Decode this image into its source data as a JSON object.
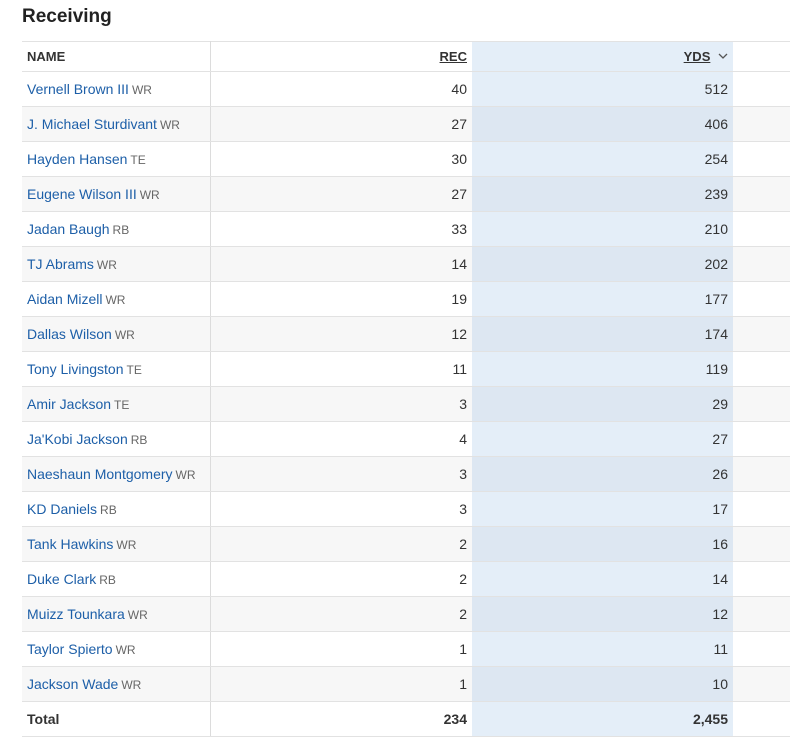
{
  "header": {
    "title": "Receiving"
  },
  "table": {
    "columns": [
      "NAME",
      "REC",
      "YDS"
    ],
    "rows": [
      {
        "name": "Vernell Brown III",
        "pos": "WR",
        "rec": "40",
        "yds": "512"
      },
      {
        "name": "J. Michael Sturdivant",
        "pos": "WR",
        "rec": "27",
        "yds": "406"
      },
      {
        "name": "Hayden Hansen",
        "pos": "TE",
        "rec": "30",
        "yds": "254"
      },
      {
        "name": "Eugene Wilson III",
        "pos": "WR",
        "rec": "27",
        "yds": "239"
      },
      {
        "name": "Jadan Baugh",
        "pos": "RB",
        "rec": "33",
        "yds": "210"
      },
      {
        "name": "TJ Abrams",
        "pos": "WR",
        "rec": "14",
        "yds": "202"
      },
      {
        "name": "Aidan Mizell",
        "pos": "WR",
        "rec": "19",
        "yds": "177"
      },
      {
        "name": "Dallas Wilson",
        "pos": "WR",
        "rec": "12",
        "yds": "174"
      },
      {
        "name": "Tony Livingston",
        "pos": "TE",
        "rec": "11",
        "yds": "119"
      },
      {
        "name": "Amir Jackson",
        "pos": "TE",
        "rec": "3",
        "yds": "29"
      },
      {
        "name": "Ja'Kobi Jackson",
        "pos": "RB",
        "rec": "4",
        "yds": "27"
      },
      {
        "name": "Naeshaun Montgomery",
        "pos": "WR",
        "rec": "3",
        "yds": "26"
      },
      {
        "name": "KD Daniels",
        "pos": "RB",
        "rec": "3",
        "yds": "17"
      },
      {
        "name": "Tank Hawkins",
        "pos": "WR",
        "rec": "2",
        "yds": "16"
      },
      {
        "name": "Duke Clark",
        "pos": "RB",
        "rec": "2",
        "yds": "14"
      },
      {
        "name": "Muizz Tounkara",
        "pos": "WR",
        "rec": "2",
        "yds": "12"
      },
      {
        "name": "Taylor Spierto",
        "pos": "WR",
        "rec": "1",
        "yds": "11"
      },
      {
        "name": "Jackson Wade",
        "pos": "WR",
        "rec": "1",
        "yds": "10"
      }
    ],
    "total": {
      "label": "Total",
      "rec": "234",
      "yds": "2,455"
    }
  }
}
